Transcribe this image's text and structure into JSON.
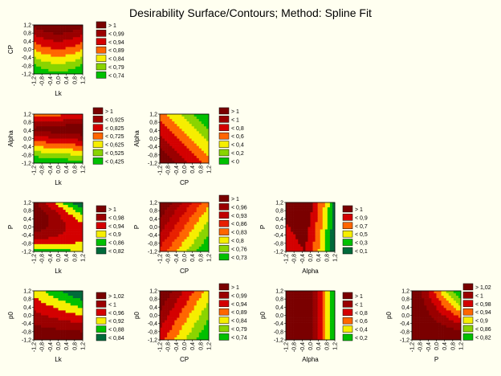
{
  "title": "Desirability Surface/Contours; Method: Spline Fit",
  "palette": {
    "darkred": "#7a0000",
    "maroon": "#9a0000",
    "red": "#d40000",
    "orange": "#ff6600",
    "yellow": "#f6ee00",
    "lime": "#8ad400",
    "green": "#00c000",
    "darkgreen": "#006a3a"
  },
  "chart_data": [
    {
      "id": "lk-cp",
      "type": "heatmap",
      "xlabel": "Lk",
      "ylabel": "CP",
      "x_ticks": [
        "-1,2",
        "-0,8",
        "-0,4",
        "0,0",
        "0,4",
        "0,8",
        "1,2"
      ],
      "y_ticks": [
        "1,2",
        "0,8",
        "0,4",
        "0,0",
        "-0,4",
        "-0,8",
        "-1,2"
      ],
      "xlim": [
        -1.2,
        1.2
      ],
      "ylim": [
        -1.2,
        1.2
      ],
      "legend": [
        {
          "label": "> 1",
          "color": "#7a0000"
        },
        {
          "label": "< 0,99",
          "color": "#9a0000"
        },
        {
          "label": "< 0,94",
          "color": "#d40000"
        },
        {
          "label": "< 0,89",
          "color": "#ff6600"
        },
        {
          "label": "< 0,84",
          "color": "#f6ee00"
        },
        {
          "label": "< 0,79",
          "color": "#8ad400"
        },
        {
          "label": "< 0,74",
          "color": "#00c000"
        }
      ]
    },
    {
      "id": "lk-alpha",
      "type": "heatmap",
      "xlabel": "Lk",
      "ylabel": "Alpha",
      "x_ticks": [
        "-1,2",
        "-0,8",
        "-0,4",
        "0,0",
        "0,4",
        "0,8",
        "1,2"
      ],
      "y_ticks": [
        "1,2",
        "0,8",
        "0,4",
        "0,0",
        "-0,4",
        "-0,8",
        "-1,2"
      ],
      "xlim": [
        -1.2,
        1.2
      ],
      "ylim": [
        -1.2,
        1.2
      ],
      "legend": [
        {
          "label": "> 1",
          "color": "#7a0000"
        },
        {
          "label": "< 0,925",
          "color": "#9a0000"
        },
        {
          "label": "< 0,825",
          "color": "#d40000"
        },
        {
          "label": "< 0,725",
          "color": "#ff6600"
        },
        {
          "label": "< 0,625",
          "color": "#f6ee00"
        },
        {
          "label": "< 0,525",
          "color": "#8ad400"
        },
        {
          "label": "< 0,425",
          "color": "#00c000"
        }
      ]
    },
    {
      "id": "cp-alpha",
      "type": "heatmap",
      "xlabel": "CP",
      "ylabel": "Alpha",
      "x_ticks": [
        "-1,2",
        "-0,8",
        "-0,4",
        "0,0",
        "0,4",
        "0,8",
        "1,2"
      ],
      "y_ticks": [
        "1,2",
        "0,8",
        "0,4",
        "0,0",
        "-0,4",
        "-0,8",
        "-1,2"
      ],
      "xlim": [
        -1.2,
        1.2
      ],
      "ylim": [
        -1.2,
        1.2
      ],
      "legend": [
        {
          "label": "> 1",
          "color": "#7a0000"
        },
        {
          "label": "< 1",
          "color": "#9a0000"
        },
        {
          "label": "< 0,8",
          "color": "#d40000"
        },
        {
          "label": "< 0,6",
          "color": "#ff6600"
        },
        {
          "label": "< 0,4",
          "color": "#f6ee00"
        },
        {
          "label": "< 0,2",
          "color": "#8ad400"
        },
        {
          "label": "< 0",
          "color": "#00c000"
        }
      ]
    },
    {
      "id": "lk-p",
      "type": "heatmap",
      "xlabel": "Lk",
      "ylabel": "P",
      "x_ticks": [
        "-1,2",
        "-0,8",
        "-0,4",
        "0,0",
        "0,4",
        "0,8",
        "1,2"
      ],
      "y_ticks": [
        "1,2",
        "0,8",
        "0,4",
        "0,0",
        "-0,4",
        "-0,8",
        "-1,2"
      ],
      "xlim": [
        -1.2,
        1.2
      ],
      "ylim": [
        -1.2,
        1.2
      ],
      "legend": [
        {
          "label": "> 1",
          "color": "#7a0000"
        },
        {
          "label": "< 0,98",
          "color": "#9a0000"
        },
        {
          "label": "< 0,94",
          "color": "#d40000"
        },
        {
          "label": "< 0,9",
          "color": "#f6ee00"
        },
        {
          "label": "< 0,86",
          "color": "#00c000"
        },
        {
          "label": "< 0,82",
          "color": "#006a3a"
        }
      ]
    },
    {
      "id": "cp-p",
      "type": "heatmap",
      "xlabel": "CP",
      "ylabel": "P",
      "x_ticks": [
        "-1,2",
        "-0,8",
        "-0,4",
        "0,0",
        "0,4",
        "0,8",
        "1,2"
      ],
      "y_ticks": [
        "1,2",
        "0,8",
        "0,4",
        "0,0",
        "-0,4",
        "-0,8",
        "-1,2"
      ],
      "xlim": [
        -1.2,
        1.2
      ],
      "ylim": [
        -1.2,
        1.2
      ],
      "legend": [
        {
          "label": "> 1",
          "color": "#7a0000"
        },
        {
          "label": "< 0,96",
          "color": "#9a0000"
        },
        {
          "label": "< 0,93",
          "color": "#c00000"
        },
        {
          "label": "< 0,86",
          "color": "#e82000"
        },
        {
          "label": "< 0,83",
          "color": "#ff6600"
        },
        {
          "label": "< 0,8",
          "color": "#f6ee00"
        },
        {
          "label": "< 0,76",
          "color": "#8ad400"
        },
        {
          "label": "< 0,73",
          "color": "#00c000"
        }
      ]
    },
    {
      "id": "alpha-p",
      "type": "heatmap",
      "xlabel": "Alpha",
      "ylabel": "P",
      "x_ticks": [
        "-1,2",
        "-0,8",
        "-0,4",
        "0,0",
        "0,4",
        "0,8",
        "1,2"
      ],
      "y_ticks": [
        "1,2",
        "0,8",
        "0,4",
        "0,0",
        "-0,4",
        "-0,8",
        "-1,2"
      ],
      "xlim": [
        -1.2,
        1.2
      ],
      "ylim": [
        -1.2,
        1.2
      ],
      "legend": [
        {
          "label": "> 1",
          "color": "#7a0000"
        },
        {
          "label": "< 0,9",
          "color": "#d40000"
        },
        {
          "label": "< 0,7",
          "color": "#ff6600"
        },
        {
          "label": "< 0,5",
          "color": "#f6ee00"
        },
        {
          "label": "< 0,3",
          "color": "#00c000"
        },
        {
          "label": "< 0,1",
          "color": "#006a3a"
        }
      ]
    },
    {
      "id": "lk-p0",
      "type": "heatmap",
      "xlabel": "Lk",
      "ylabel": "p0",
      "x_ticks": [
        "-1,2",
        "-0,8",
        "-0,4",
        "0,0",
        "0,4",
        "0,8",
        "1,2"
      ],
      "y_ticks": [
        "1,2",
        "0,8",
        "0,4",
        "0,0",
        "-0,4",
        "-0,8",
        "-1,2"
      ],
      "xlim": [
        -1.2,
        1.2
      ],
      "ylim": [
        -1.2,
        1.2
      ],
      "legend": [
        {
          "label": "> 1,02",
          "color": "#7a0000"
        },
        {
          "label": "< 1",
          "color": "#9a0000"
        },
        {
          "label": "< 0,96",
          "color": "#d40000"
        },
        {
          "label": "< 0,92",
          "color": "#f6ee00"
        },
        {
          "label": "< 0,88",
          "color": "#00c000"
        },
        {
          "label": "< 0,84",
          "color": "#006a3a"
        }
      ]
    },
    {
      "id": "cp-p0",
      "type": "heatmap",
      "xlabel": "CP",
      "ylabel": "p0",
      "x_ticks": [
        "-1,2",
        "-0,8",
        "-0,4",
        "0,0",
        "0,4",
        "0,8",
        "1,2"
      ],
      "y_ticks": [
        "1,2",
        "0,8",
        "0,4",
        "0,0",
        "-0,4",
        "-0,8",
        "-1,2"
      ],
      "xlim": [
        -1.2,
        1.2
      ],
      "ylim": [
        -1.2,
        1.2
      ],
      "legend": [
        {
          "label": "> 1",
          "color": "#7a0000"
        },
        {
          "label": "< 0,99",
          "color": "#9a0000"
        },
        {
          "label": "< 0,94",
          "color": "#d40000"
        },
        {
          "label": "< 0,89",
          "color": "#ff6600"
        },
        {
          "label": "< 0,84",
          "color": "#f6ee00"
        },
        {
          "label": "< 0,79",
          "color": "#8ad400"
        },
        {
          "label": "< 0,74",
          "color": "#00c000"
        }
      ]
    },
    {
      "id": "alpha-p0",
      "type": "heatmap",
      "xlabel": "Alpha",
      "ylabel": "p0",
      "x_ticks": [
        "-1,2",
        "-0,8",
        "-0,4",
        "0,0",
        "0,4",
        "0,8",
        "1,2"
      ],
      "y_ticks": [
        "1,2",
        "0,8",
        "0,4",
        "0,0",
        "-0,4",
        "-0,8",
        "-1,2"
      ],
      "xlim": [
        -1.2,
        1.2
      ],
      "ylim": [
        -1.2,
        1.2
      ],
      "legend": [
        {
          "label": "> 1",
          "color": "#7a0000"
        },
        {
          "label": "< 1",
          "color": "#9a0000"
        },
        {
          "label": "< 0,8",
          "color": "#d40000"
        },
        {
          "label": "< 0,6",
          "color": "#ff6600"
        },
        {
          "label": "< 0,4",
          "color": "#f6ee00"
        },
        {
          "label": "< 0,2",
          "color": "#00c000"
        }
      ]
    },
    {
      "id": "p-p0",
      "type": "heatmap",
      "xlabel": "P",
      "ylabel": "p0",
      "x_ticks": [
        "-1,2",
        "-0,8",
        "-0,4",
        "0,0",
        "0,4",
        "0,8",
        "1,2"
      ],
      "y_ticks": [
        "1,2",
        "0,8",
        "0,4",
        "0,0",
        "-0,4",
        "-0,8",
        "-1,2"
      ],
      "xlim": [
        -1.2,
        1.2
      ],
      "ylim": [
        -1.2,
        1.2
      ],
      "legend": [
        {
          "label": "> 1,02",
          "color": "#7a0000"
        },
        {
          "label": "< 1",
          "color": "#9a0000"
        },
        {
          "label": "< 0,98",
          "color": "#d40000"
        },
        {
          "label": "< 0,94",
          "color": "#ff6600"
        },
        {
          "label": "< 0,9",
          "color": "#f6ee00"
        },
        {
          "label": "< 0,86",
          "color": "#8ad400"
        },
        {
          "label": "< 0,82",
          "color": "#00c000"
        }
      ]
    }
  ]
}
